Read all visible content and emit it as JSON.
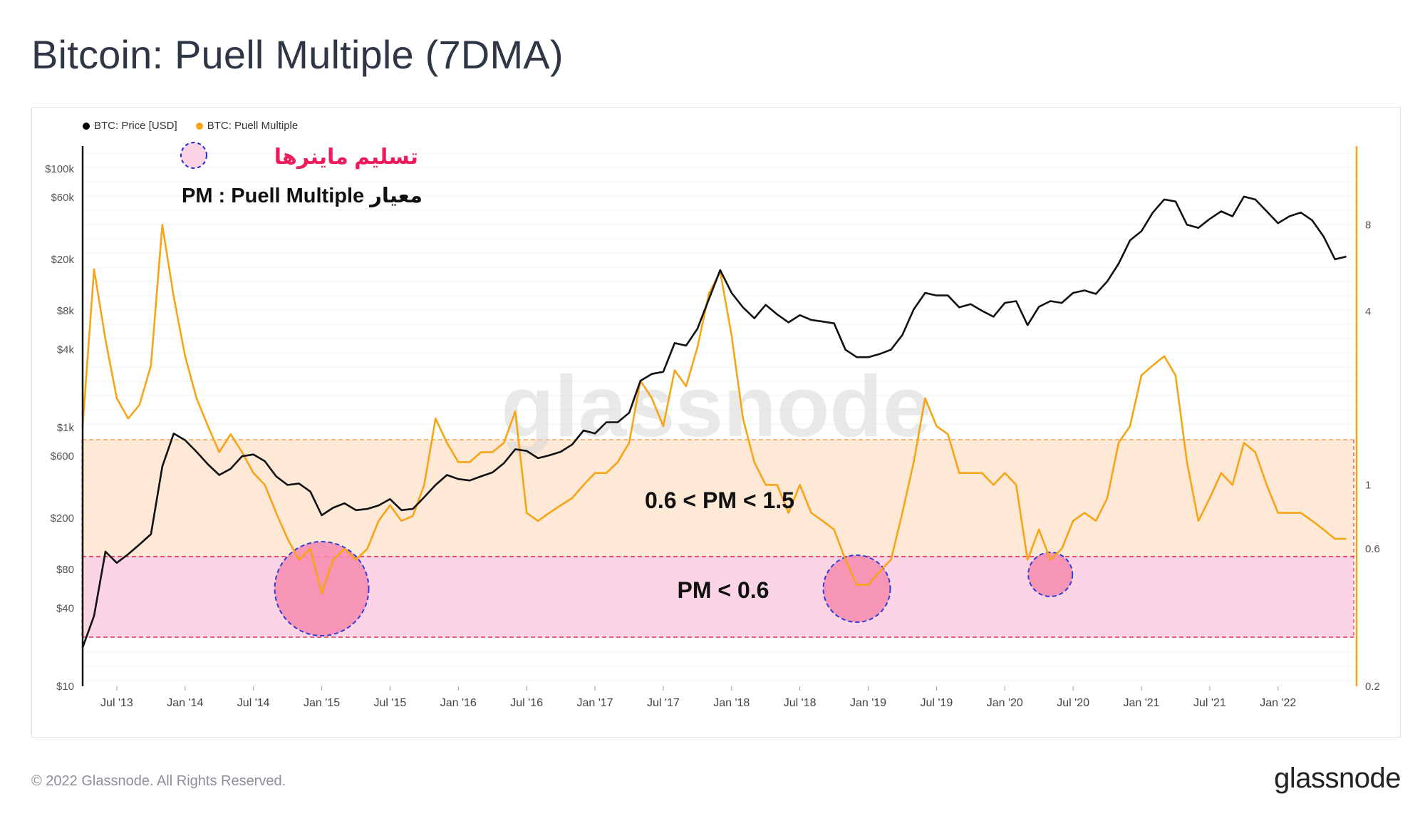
{
  "title": "Bitcoin: Puell Multiple (7DMA)",
  "copyright": "© 2022 Glassnode. All Rights Reserved.",
  "brand": "glassnode",
  "watermark": "glassnode",
  "legend": [
    {
      "label": "BTC: Price [USD]",
      "color": "#000000"
    },
    {
      "label": "BTC: Puell Multiple",
      "color": "#f7a417"
    }
  ],
  "annotations": {
    "miner_capitulation": "تسلیم ماینرها",
    "pm_definition": "PM : Puell Multiple معیار",
    "band_upper_label": "0.6 < PM < 1.5",
    "band_lower_label": "PM < 0.6"
  },
  "colors": {
    "price": "#111111",
    "puell": "#f7a417",
    "band_upper": "#fde7d1",
    "band_lower": "#fbd3e4",
    "circle_fill": "#f78fb3",
    "circle_stroke": "#1c2bd9",
    "annotation_red": "#ee1c5a"
  },
  "chart_data": {
    "type": "line",
    "title": "Bitcoin: Puell Multiple (7DMA)",
    "x_ticks": [
      "Jul '13",
      "Jan '14",
      "Jul '14",
      "Jan '15",
      "Jul '15",
      "Jan '16",
      "Jul '16",
      "Jan '17",
      "Jul '17",
      "Jan '18",
      "Jul '18",
      "Jan '19",
      "Jul '19",
      "Jan '20",
      "Jul '20",
      "Jan '21",
      "Jul '21",
      "Jan '22"
    ],
    "x_range": [
      "2013-04",
      "2022-07"
    ],
    "y_left": {
      "scale": "log",
      "range": [
        10,
        150000
      ],
      "ticks": [
        "$10",
        "$40",
        "$80",
        "$200",
        "$600",
        "$1k",
        "$4k",
        "$8k",
        "$20k",
        "$60k",
        "$100k"
      ],
      "tick_values": [
        10,
        40,
        80,
        200,
        600,
        1000,
        4000,
        8000,
        20000,
        60000,
        100000
      ]
    },
    "y_right": {
      "scale": "log",
      "range": [
        0.2,
        15
      ],
      "ticks": [
        "0.2",
        "0.6",
        "1",
        "4",
        "8"
      ],
      "tick_values": [
        0.2,
        0.6,
        1,
        4,
        8
      ]
    },
    "bands": [
      {
        "label": "0.6 < PM < 1.5",
        "from": 0.6,
        "to": 1.5
      },
      {
        "label": "PM < 0.6",
        "from": 0.3,
        "to": 0.6
      }
    ],
    "circles_dates": [
      "2015-01",
      "2018-12",
      "2020-05"
    ],
    "series": [
      {
        "name": "BTC: Price [USD]",
        "axis": "left",
        "x": [
          "2013-04",
          "2013-05",
          "2013-06",
          "2013-07",
          "2013-08",
          "2013-09",
          "2013-10",
          "2013-11",
          "2013-12",
          "2014-01",
          "2014-02",
          "2014-03",
          "2014-04",
          "2014-05",
          "2014-06",
          "2014-07",
          "2014-08",
          "2014-09",
          "2014-10",
          "2014-11",
          "2014-12",
          "2015-01",
          "2015-02",
          "2015-03",
          "2015-04",
          "2015-05",
          "2015-06",
          "2015-07",
          "2015-08",
          "2015-09",
          "2015-10",
          "2015-11",
          "2015-12",
          "2016-01",
          "2016-02",
          "2016-03",
          "2016-04",
          "2016-05",
          "2016-06",
          "2016-07",
          "2016-08",
          "2016-09",
          "2016-10",
          "2016-11",
          "2016-12",
          "2017-01",
          "2017-02",
          "2017-03",
          "2017-04",
          "2017-05",
          "2017-06",
          "2017-07",
          "2017-08",
          "2017-09",
          "2017-10",
          "2017-11",
          "2017-12",
          "2018-01",
          "2018-02",
          "2018-03",
          "2018-04",
          "2018-05",
          "2018-06",
          "2018-07",
          "2018-08",
          "2018-09",
          "2018-10",
          "2018-11",
          "2018-12",
          "2019-01",
          "2019-02",
          "2019-03",
          "2019-04",
          "2019-05",
          "2019-06",
          "2019-07",
          "2019-08",
          "2019-09",
          "2019-10",
          "2019-11",
          "2019-12",
          "2020-01",
          "2020-02",
          "2020-03",
          "2020-04",
          "2020-05",
          "2020-06",
          "2020-07",
          "2020-08",
          "2020-09",
          "2020-10",
          "2020-11",
          "2020-12",
          "2021-01",
          "2021-02",
          "2021-03",
          "2021-04",
          "2021-05",
          "2021-06",
          "2021-07",
          "2021-08",
          "2021-09",
          "2021-10",
          "2021-11",
          "2021-12",
          "2022-01",
          "2022-02",
          "2022-03",
          "2022-04",
          "2022-05",
          "2022-06",
          "2022-07"
        ],
        "y": [
          20,
          35,
          110,
          90,
          105,
          125,
          150,
          500,
          900,
          800,
          650,
          520,
          430,
          480,
          600,
          620,
          550,
          420,
          360,
          370,
          320,
          210,
          240,
          260,
          230,
          235,
          250,
          280,
          230,
          235,
          290,
          360,
          430,
          400,
          390,
          420,
          450,
          530,
          680,
          660,
          580,
          610,
          650,
          740,
          950,
          900,
          1100,
          1100,
          1300,
          2300,
          2600,
          2700,
          4500,
          4300,
          5800,
          9800,
          16500,
          11000,
          8500,
          7000,
          8900,
          7500,
          6500,
          7400,
          6800,
          6600,
          6400,
          4000,
          3500,
          3500,
          3700,
          4000,
          5200,
          8200,
          11000,
          10500,
          10500,
          8500,
          9000,
          8000,
          7200,
          9200,
          9500,
          6200,
          8600,
          9500,
          9200,
          11000,
          11500,
          10800,
          13500,
          18500,
          28000,
          33000,
          46000,
          58000,
          56000,
          37000,
          35000,
          41000,
          47000,
          43000,
          61000,
          58000,
          47000,
          38000,
          43000,
          46000,
          40000,
          30000,
          20000,
          21000
        ]
      },
      {
        "name": "BTC: Puell Multiple",
        "axis": "right",
        "x": [
          "2013-04",
          "2013-05",
          "2013-06",
          "2013-07",
          "2013-08",
          "2013-09",
          "2013-10",
          "2013-11",
          "2013-12",
          "2014-01",
          "2014-02",
          "2014-03",
          "2014-04",
          "2014-05",
          "2014-06",
          "2014-07",
          "2014-08",
          "2014-09",
          "2014-10",
          "2014-11",
          "2014-12",
          "2015-01",
          "2015-02",
          "2015-03",
          "2015-04",
          "2015-05",
          "2015-06",
          "2015-07",
          "2015-08",
          "2015-09",
          "2015-10",
          "2015-11",
          "2015-12",
          "2016-01",
          "2016-02",
          "2016-03",
          "2016-04",
          "2016-05",
          "2016-06",
          "2016-07",
          "2016-08",
          "2016-09",
          "2016-10",
          "2016-11",
          "2016-12",
          "2017-01",
          "2017-02",
          "2017-03",
          "2017-04",
          "2017-05",
          "2017-06",
          "2017-07",
          "2017-08",
          "2017-09",
          "2017-10",
          "2017-11",
          "2017-12",
          "2018-01",
          "2018-02",
          "2018-03",
          "2018-04",
          "2018-05",
          "2018-06",
          "2018-07",
          "2018-08",
          "2018-09",
          "2018-10",
          "2018-11",
          "2018-12",
          "2019-01",
          "2019-02",
          "2019-03",
          "2019-04",
          "2019-05",
          "2019-06",
          "2019-07",
          "2019-08",
          "2019-09",
          "2019-10",
          "2019-11",
          "2019-12",
          "2020-01",
          "2020-02",
          "2020-03",
          "2020-04",
          "2020-05",
          "2020-06",
          "2020-07",
          "2020-08",
          "2020-09",
          "2020-10",
          "2020-11",
          "2020-12",
          "2021-01",
          "2021-02",
          "2021-03",
          "2021-04",
          "2021-05",
          "2021-06",
          "2021-07",
          "2021-08",
          "2021-09",
          "2021-10",
          "2021-11",
          "2021-12",
          "2022-01",
          "2022-02",
          "2022-03",
          "2022-04",
          "2022-05",
          "2022-06",
          "2022-07"
        ],
        "y": [
          1.6,
          5.6,
          3.2,
          2.0,
          1.7,
          1.9,
          2.6,
          8.0,
          4.5,
          2.8,
          2.0,
          1.6,
          1.3,
          1.5,
          1.3,
          1.1,
          1.0,
          0.8,
          0.65,
          0.55,
          0.6,
          0.42,
          0.55,
          0.6,
          0.55,
          0.6,
          0.75,
          0.85,
          0.75,
          0.78,
          1.0,
          1.7,
          1.4,
          1.2,
          1.2,
          1.3,
          1.3,
          1.4,
          1.8,
          0.8,
          0.75,
          0.8,
          0.85,
          0.9,
          1.0,
          1.1,
          1.1,
          1.2,
          1.4,
          2.3,
          2.0,
          1.6,
          2.5,
          2.2,
          3.0,
          4.6,
          5.5,
          3.3,
          1.7,
          1.2,
          1.0,
          1.0,
          0.8,
          1.0,
          0.8,
          0.75,
          0.7,
          0.55,
          0.45,
          0.45,
          0.5,
          0.55,
          0.8,
          1.2,
          2.0,
          1.6,
          1.5,
          1.1,
          1.1,
          1.1,
          1.0,
          1.1,
          1.0,
          0.55,
          0.7,
          0.55,
          0.6,
          0.75,
          0.8,
          0.75,
          0.9,
          1.4,
          1.6,
          2.4,
          2.6,
          2.8,
          2.4,
          1.2,
          0.75,
          0.9,
          1.1,
          1.0,
          1.4,
          1.3,
          1.0,
          0.8,
          0.8,
          0.8,
          0.75,
          0.7,
          0.65,
          0.65
        ]
      }
    ]
  }
}
